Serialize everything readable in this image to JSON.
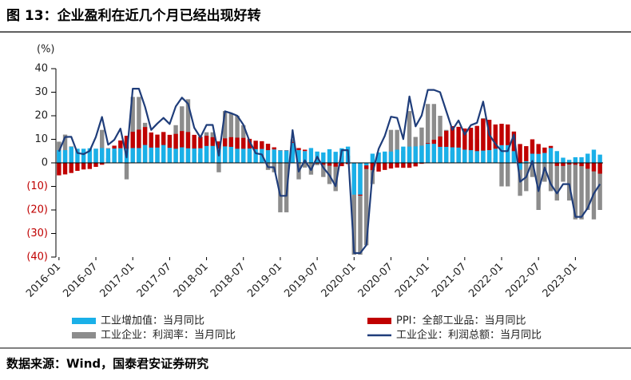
{
  "chart_data": {
    "type": "bar",
    "title": "图 13：企业盈利在近几个月已经出现好转",
    "y_label": "(%)",
    "source": "数据来源：Wind，国泰君安证券研究",
    "ylim": [
      -40,
      40
    ],
    "yticks": [
      {
        "value": -40,
        "label": "(40)"
      },
      {
        "value": -30,
        "label": "(30)"
      },
      {
        "value": -20,
        "label": "(20)"
      },
      {
        "value": -10,
        "label": "(10)"
      },
      0,
      10,
      20,
      30,
      40
    ],
    "negative_tick_color": "#c00000",
    "categories": [
      "2016-01",
      null,
      null,
      null,
      null,
      null,
      "2016-07",
      null,
      null,
      null,
      null,
      null,
      "2017-01",
      null,
      null,
      null,
      null,
      null,
      "2017-07",
      null,
      null,
      null,
      null,
      null,
      "2018-01",
      null,
      null,
      null,
      null,
      null,
      "2018-07",
      null,
      null,
      null,
      null,
      null,
      "2019-01",
      null,
      null,
      null,
      null,
      null,
      "2019-07",
      null,
      null,
      null,
      null,
      null,
      "2020-01",
      null,
      null,
      null,
      null,
      null,
      "2020-07",
      null,
      null,
      null,
      null,
      null,
      "2021-01",
      null,
      null,
      null,
      null,
      null,
      "2021-07",
      null,
      null,
      null,
      null,
      null,
      "2022-01",
      null,
      null,
      null,
      null,
      null,
      "2022-07",
      null,
      null,
      null,
      null,
      null,
      "2023-01",
      null,
      null,
      null,
      null
    ],
    "series": [
      {
        "name": "工业企业：利润率：当月同比",
        "color": "#8c8c8c",
        "kind": "bar",
        "values": [
          9,
          12,
          7,
          0,
          0,
          0,
          6,
          14,
          2,
          5,
          6,
          -7,
          28,
          28,
          17,
          8,
          10,
          12,
          10,
          16,
          24,
          27,
          10,
          4,
          13,
          13,
          -4,
          22,
          21,
          20,
          16,
          6,
          0,
          1,
          -3,
          -4,
          -21,
          -21,
          10,
          -7,
          -2,
          -5,
          -1,
          -6,
          -9,
          -12,
          3,
          3,
          -39,
          -39,
          -35,
          -9,
          0,
          4,
          14,
          14,
          5,
          22,
          11,
          15,
          25,
          25,
          20,
          14,
          5,
          11,
          5,
          10,
          10,
          19,
          5,
          2,
          -10,
          -10,
          6,
          -14,
          -12,
          -6,
          -20,
          -8,
          -12,
          -16,
          -8,
          -16,
          -24,
          -24,
          -20,
          -24,
          -20
        ]
      },
      {
        "name": "工业增加值：当月同比",
        "color": "#1ab0e8",
        "kind": "stack",
        "values": [
          5.4,
          5.4,
          6.8,
          6.0,
          6.0,
          6.2,
          6.0,
          6.3,
          6.1,
          6.1,
          6.2,
          6.0,
          6.3,
          6.3,
          7.6,
          6.5,
          6.5,
          7.6,
          6.4,
          6.0,
          6.6,
          6.2,
          6.1,
          6.2,
          7.2,
          7.2,
          6.0,
          7.0,
          6.8,
          6.0,
          6.0,
          6.1,
          5.8,
          5.9,
          5.4,
          5.7,
          5.3,
          5.3,
          8.5,
          5.4,
          5.0,
          6.3,
          4.8,
          4.4,
          5.8,
          4.7,
          6.2,
          6.9,
          -13.5,
          -13.5,
          -1.1,
          3.9,
          4.4,
          4.8,
          4.8,
          5.6,
          6.9,
          6.9,
          7.0,
          7.3,
          8.1,
          8.1,
          6.8,
          6.8,
          6.6,
          6.5,
          5.6,
          5.4,
          5.0,
          5.2,
          5.4,
          6.0,
          7.5,
          7.5,
          5.0,
          -2.9,
          0.7,
          3.9,
          3.8,
          4.2,
          6.3,
          5.0,
          2.2,
          1.3,
          2.4,
          2.4,
          3.9,
          5.6,
          3.5
        ]
      },
      {
        "name": "PPI：全部工业品：当月同比",
        "color": "#c00000",
        "kind": "stack",
        "values": [
          -5.3,
          -4.9,
          -4.3,
          -3.4,
          -2.8,
          -2.6,
          -1.7,
          -0.8,
          0.1,
          1.2,
          3.3,
          5.5,
          6.9,
          7.8,
          7.6,
          6.4,
          5.5,
          5.5,
          5.5,
          6.3,
          6.9,
          6.9,
          5.8,
          4.9,
          4.3,
          3.7,
          3.1,
          3.4,
          4.1,
          4.7,
          4.6,
          4.1,
          3.6,
          3.3,
          2.7,
          0.9,
          0.1,
          0.1,
          0.4,
          0.9,
          0.6,
          0.0,
          -0.3,
          -0.8,
          -1.2,
          -1.6,
          -1.4,
          -0.5,
          0.1,
          -0.4,
          -1.5,
          -3.1,
          -3.7,
          -3.0,
          -2.4,
          -2.0,
          -2.1,
          -2.1,
          -1.5,
          -0.4,
          0.3,
          1.7,
          4.4,
          6.8,
          9.0,
          8.8,
          9.0,
          9.5,
          10.7,
          13.5,
          12.9,
          10.3,
          9.1,
          8.8,
          8.3,
          8.0,
          6.4,
          6.1,
          4.2,
          2.3,
          0.9,
          -1.3,
          -1.3,
          -0.7,
          -0.8,
          -1.4,
          -2.5,
          -3.6,
          -4.6
        ]
      },
      {
        "name": "工业企业：利润总额：当月同比",
        "color": "#1f3d7a",
        "kind": "line",
        "values": [
          4.8,
          11,
          11.1,
          4.2,
          3.7,
          5.1,
          11.0,
          19.5,
          7.7,
          9.8,
          14.5,
          2.3,
          31.5,
          31.5,
          23.8,
          14.0,
          16.7,
          19.1,
          16.5,
          24.0,
          27.7,
          25.1,
          14.9,
          10.8,
          16.1,
          16.1,
          3.1,
          21.9,
          21.1,
          20.0,
          16.2,
          9.2,
          4.1,
          3.6,
          -1.8,
          -1.9,
          -14,
          -14,
          13.9,
          -3.7,
          1.1,
          -3.1,
          2.6,
          -2.0,
          -5.3,
          -9.9,
          5.4,
          5.4,
          -38.3,
          -38.3,
          -34.9,
          -4.3,
          6.0,
          11.5,
          19.6,
          19.1,
          10.1,
          28.2,
          15.5,
          20.1,
          31,
          31,
          30,
          22,
          14,
          18,
          12,
          16,
          17,
          26,
          12,
          8,
          5,
          5,
          12,
          -8,
          -6,
          0.8,
          -12,
          -2,
          -9,
          -13,
          -9,
          -9,
          -22.9,
          -22.9,
          -19.2,
          -13,
          -9
        ]
      }
    ],
    "legend_order": [
      1,
      2,
      0,
      3
    ]
  }
}
